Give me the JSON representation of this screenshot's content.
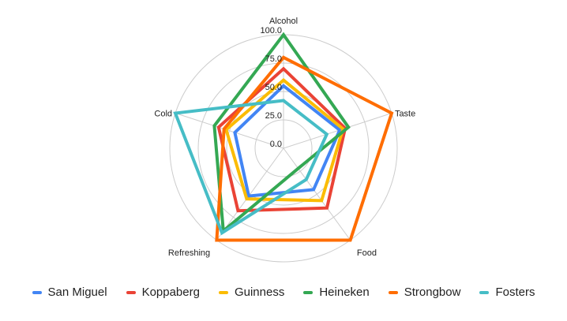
{
  "chart_data": {
    "type": "radar",
    "title": "",
    "axes": [
      "Alcohol",
      "Taste",
      "Food",
      "Refreshing",
      "Cold"
    ],
    "radial_ticks": [
      "0.0",
      "25.0",
      "50.0",
      "75.0",
      "100.0"
    ],
    "rlim": [
      0,
      100
    ],
    "grid": true,
    "legend_position": "bottom",
    "series": [
      {
        "name": "San Miguel",
        "color": "#4285F4",
        "values": [
          55,
          52,
          45,
          52,
          45
        ]
      },
      {
        "name": "Koppaberg",
        "color": "#EA4335",
        "values": [
          70,
          57,
          65,
          68,
          60
        ]
      },
      {
        "name": "Guinness",
        "color": "#FBBC04",
        "values": [
          60,
          55,
          57,
          55,
          53
        ]
      },
      {
        "name": "Heineken",
        "color": "#34A853",
        "values": [
          100,
          60,
          22,
          90,
          64
        ]
      },
      {
        "name": "Strongbow",
        "color": "#FF6D01",
        "values": [
          80,
          100,
          100,
          100,
          55
        ]
      },
      {
        "name": "Fosters",
        "color": "#46BDC6",
        "values": [
          42,
          40,
          34,
          92,
          100
        ]
      }
    ]
  },
  "legend": {
    "items": [
      {
        "label": "San Miguel",
        "color": "#4285F4"
      },
      {
        "label": "Koppaberg",
        "color": "#EA4335"
      },
      {
        "label": "Guinness",
        "color": "#FBBC04"
      },
      {
        "label": "Heineken",
        "color": "#34A853"
      },
      {
        "label": "Strongbow",
        "color": "#FF6D01"
      },
      {
        "label": "Fosters",
        "color": "#46BDC6"
      }
    ]
  }
}
